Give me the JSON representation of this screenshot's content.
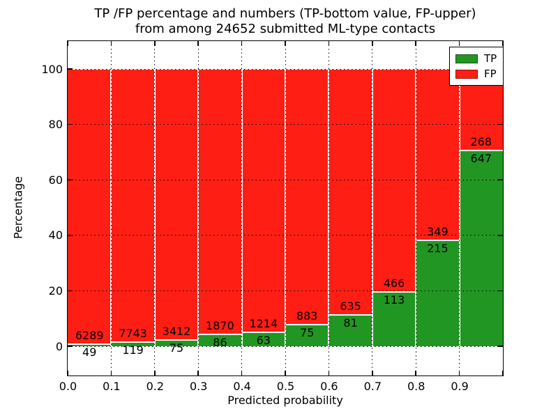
{
  "title": {
    "line1": "TP /FP percentage and numbers (TP-bottom value, FP-upper)",
    "line2": "from among 24652 submitted ML-type contacts"
  },
  "axes": {
    "xlabel": "Predicted probability",
    "ylabel": "Percentage",
    "x_ticks": [
      "0.0",
      "0.1",
      "0.2",
      "0.3",
      "0.4",
      "0.5",
      "0.6",
      "0.7",
      "0.8",
      "0.9"
    ],
    "y_ticks": [
      "0",
      "20",
      "40",
      "60",
      "80",
      "100"
    ]
  },
  "legend": [
    {
      "label": "TP",
      "color": "#229622"
    },
    {
      "label": "FP",
      "color": "#ff1e14"
    }
  ],
  "chart_data": {
    "type": "bar",
    "stacked": true,
    "normalized": "each 0.1-wide bin scaled to 100%",
    "title": "TP /FP percentage and numbers (TP-bottom value, FP-upper) from among 24652 submitted ML-type contacts",
    "xlabel": "Predicted probability",
    "ylabel": "Percentage",
    "bin_edges": [
      0.0,
      0.1,
      0.2,
      0.3,
      0.4,
      0.5,
      0.6,
      0.7,
      0.8,
      0.9,
      1.0
    ],
    "xlim": [
      0.0,
      1.0
    ],
    "ylim": [
      -10.5,
      110.5
    ],
    "grid": "dotted, both axes",
    "legend_position": "upper right",
    "total_contacts": 24652,
    "series": [
      {
        "name": "TP",
        "color": "#229622",
        "counts": [
          49,
          119,
          75,
          86,
          63,
          75,
          81,
          113,
          215,
          647
        ]
      },
      {
        "name": "FP",
        "color": "#ff1e14",
        "counts": [
          6289,
          7743,
          3412,
          1870,
          1214,
          883,
          635,
          466,
          349,
          268
        ]
      }
    ],
    "tp_percent_per_bin": [
      0.77,
      1.51,
      2.15,
      4.4,
      4.93,
      7.83,
      11.31,
      19.52,
      38.12,
      70.71
    ]
  }
}
